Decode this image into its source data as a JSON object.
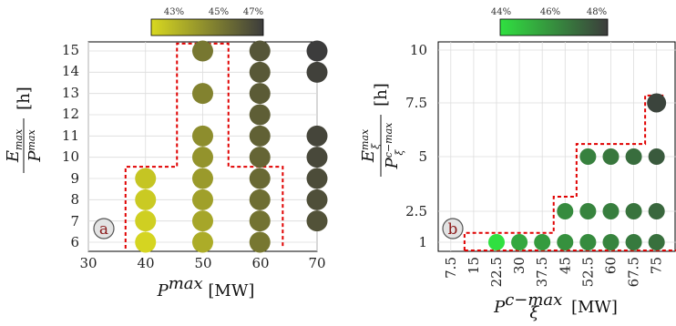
{
  "chart_data": [
    {
      "panel": "a",
      "type": "scatter",
      "xlim": [
        30,
        70
      ],
      "ylim": [
        6,
        15
      ],
      "xticks": [
        "30",
        "40",
        "50",
        "60",
        "70"
      ],
      "yticks": [
        "6",
        "7",
        "8",
        "9",
        "10",
        "11",
        "12",
        "13",
        "14",
        "15"
      ],
      "xlabel": "P^max [MW]",
      "ylabel": "E_max / P^max [h]",
      "grid": true,
      "colorbar": {
        "ticks": [
          "43%",
          "45%",
          "47%"
        ],
        "colors": [
          "#d8d820",
          "#3c3c3c"
        ]
      },
      "points": [
        {
          "x": 40,
          "y": 6,
          "c": 0.02
        },
        {
          "x": 40,
          "y": 7,
          "c": 0.06
        },
        {
          "x": 40,
          "y": 8,
          "c": 0.09
        },
        {
          "x": 40,
          "y": 9,
          "c": 0.12
        },
        {
          "x": 50,
          "y": 6,
          "c": 0.28
        },
        {
          "x": 50,
          "y": 7,
          "c": 0.32
        },
        {
          "x": 50,
          "y": 8,
          "c": 0.36
        },
        {
          "x": 50,
          "y": 9,
          "c": 0.4
        },
        {
          "x": 50,
          "y": 10,
          "c": 0.44
        },
        {
          "x": 50,
          "y": 11,
          "c": 0.48
        },
        {
          "x": 50,
          "y": 13,
          "c": 0.55
        },
        {
          "x": 50,
          "y": 15,
          "c": 0.62
        },
        {
          "x": 60,
          "y": 6,
          "c": 0.62
        },
        {
          "x": 60,
          "y": 7,
          "c": 0.65
        },
        {
          "x": 60,
          "y": 8,
          "c": 0.68
        },
        {
          "x": 60,
          "y": 9,
          "c": 0.71
        },
        {
          "x": 60,
          "y": 10,
          "c": 0.74
        },
        {
          "x": 60,
          "y": 11,
          "c": 0.76
        },
        {
          "x": 60,
          "y": 12,
          "c": 0.78
        },
        {
          "x": 60,
          "y": 13,
          "c": 0.8
        },
        {
          "x": 60,
          "y": 14,
          "c": 0.82
        },
        {
          "x": 60,
          "y": 15,
          "c": 0.84
        },
        {
          "x": 70,
          "y": 7,
          "c": 0.86
        },
        {
          "x": 70,
          "y": 8,
          "c": 0.88
        },
        {
          "x": 70,
          "y": 9,
          "c": 0.9
        },
        {
          "x": 70,
          "y": 10,
          "c": 0.92
        },
        {
          "x": 70,
          "y": 11,
          "c": 0.94
        },
        {
          "x": 70,
          "y": 14,
          "c": 0.97
        },
        {
          "x": 70,
          "y": 15,
          "c": 1.0
        }
      ],
      "boundary": [
        [
          36.5,
          5.7
        ],
        [
          36.5,
          9.55
        ],
        [
          45.5,
          9.55
        ],
        [
          45.5,
          15.35
        ],
        [
          54.5,
          15.35
        ],
        [
          54.5,
          9.55
        ],
        [
          64,
          9.55
        ],
        [
          64,
          5.7
        ]
      ],
      "badge": "a"
    },
    {
      "panel": "b",
      "type": "scatter",
      "xcategories": [
        "7.5",
        "15",
        "22.5",
        "30",
        "37.5",
        "45",
        "52.5",
        "60",
        "67.5",
        "75"
      ],
      "yticks": [
        "1",
        "2.5",
        "5",
        "7.5",
        "10"
      ],
      "xlabel": "P_ξ^{c-max} [MW]",
      "ylabel": "E_ξ^max / P_ξ^{c-max} [h]",
      "grid": true,
      "colorbar": {
        "ticks": [
          "44%",
          "46%",
          "48%"
        ],
        "colors": [
          "#30e040",
          "#3c3c3c"
        ]
      },
      "points": [
        {
          "x": "22.5",
          "y": "1",
          "c": 0.0
        },
        {
          "x": "30",
          "y": "1",
          "c": 0.35
        },
        {
          "x": "37.5",
          "y": "1",
          "c": 0.42
        },
        {
          "x": "45",
          "y": "1",
          "c": 0.48
        },
        {
          "x": "52.5",
          "y": "1",
          "c": 0.52
        },
        {
          "x": "60",
          "y": "1",
          "c": 0.56
        },
        {
          "x": "67.5",
          "y": "1",
          "c": 0.62
        },
        {
          "x": "75",
          "y": "1",
          "c": 0.68
        },
        {
          "x": "45",
          "y": "2.5",
          "c": 0.52
        },
        {
          "x": "52.5",
          "y": "2.5",
          "c": 0.56
        },
        {
          "x": "60",
          "y": "2.5",
          "c": 0.6
        },
        {
          "x": "67.5",
          "y": "2.5",
          "c": 0.66
        },
        {
          "x": "75",
          "y": "2.5",
          "c": 0.74
        },
        {
          "x": "52.5",
          "y": "5",
          "c": 0.58
        },
        {
          "x": "60",
          "y": "5",
          "c": 0.64
        },
        {
          "x": "67.5",
          "y": "5",
          "c": 0.7
        },
        {
          "x": "75",
          "y": "5",
          "c": 0.82
        },
        {
          "x": "75",
          "y": "7.5",
          "c": 0.95
        }
      ],
      "boundary": [
        [
          1.6,
          0.55
        ],
        [
          1.6,
          1.45
        ],
        [
          5.5,
          1.45
        ],
        [
          5.5,
          3.2
        ],
        [
          6.5,
          3.2
        ],
        [
          6.5,
          5.75
        ],
        [
          9.5,
          5.75
        ],
        [
          9.5,
          8.1
        ],
        [
          10.4,
          8.1
        ]
      ],
      "badge": "b"
    }
  ]
}
